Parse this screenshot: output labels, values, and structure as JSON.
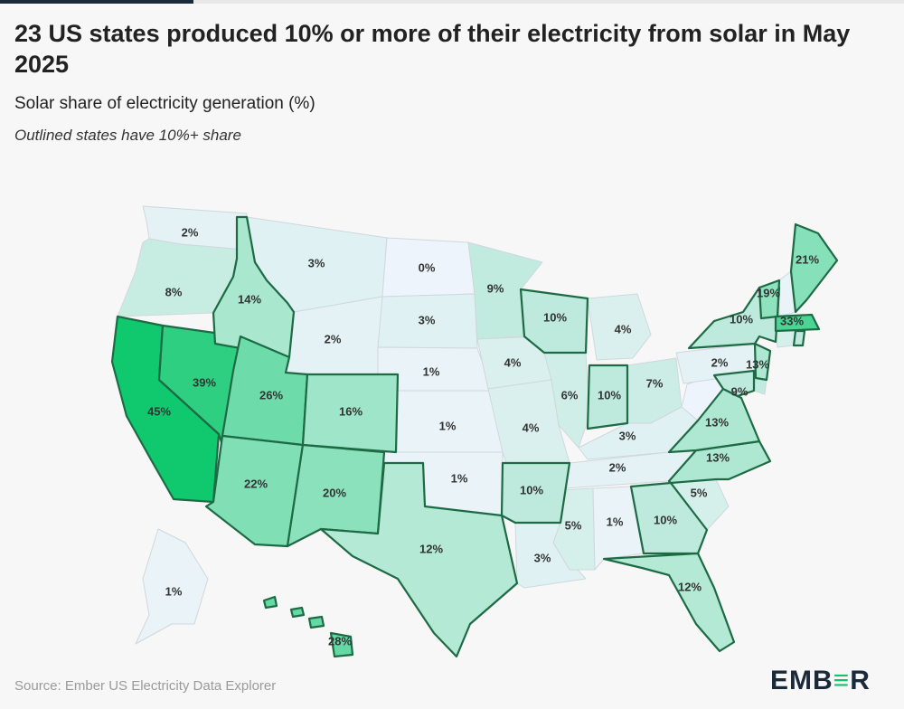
{
  "title": "23 US states produced 10% or more of their electricity from solar in May 2025",
  "subtitle": "Solar share of electricity generation (%)",
  "note": "Outlined states have 10%+ share",
  "source": "Source: Ember US Electricity Data Explorer",
  "logo": {
    "pre": "EMB",
    "bar": "≡",
    "post": "R"
  },
  "colors": {
    "scale_low": "#eef4fb",
    "scale_high": "#10c96e",
    "outline": "#1e6a45",
    "border": "#cfd8dc"
  },
  "chart_data": {
    "type": "choropleth",
    "threshold_outlined": 10,
    "states": [
      {
        "state": "WA",
        "value": 2,
        "label": "2%"
      },
      {
        "state": "OR",
        "value": 8,
        "label": "8%"
      },
      {
        "state": "CA",
        "value": 45,
        "label": "45%"
      },
      {
        "state": "NV",
        "value": 39,
        "label": "39%"
      },
      {
        "state": "ID",
        "value": 14,
        "label": "14%"
      },
      {
        "state": "MT",
        "value": 3,
        "label": "3%"
      },
      {
        "state": "WY",
        "value": 2,
        "label": "2%"
      },
      {
        "state": "UT",
        "value": 26,
        "label": "26%"
      },
      {
        "state": "AZ",
        "value": 22,
        "label": "22%"
      },
      {
        "state": "CO",
        "value": 16,
        "label": "16%"
      },
      {
        "state": "NM",
        "value": 20,
        "label": "20%"
      },
      {
        "state": "ND",
        "value": 0,
        "label": "0%"
      },
      {
        "state": "SD",
        "value": 3,
        "label": "3%"
      },
      {
        "state": "NE",
        "value": 1,
        "label": "1%"
      },
      {
        "state": "KS",
        "value": 1,
        "label": "1%"
      },
      {
        "state": "OK",
        "value": 1,
        "label": "1%"
      },
      {
        "state": "TX",
        "value": 12,
        "label": "12%"
      },
      {
        "state": "MN",
        "value": 9,
        "label": "9%"
      },
      {
        "state": "IA",
        "value": 4,
        "label": "4%"
      },
      {
        "state": "MO",
        "value": 4,
        "label": "4%"
      },
      {
        "state": "AR",
        "value": 10,
        "label": "10%"
      },
      {
        "state": "LA",
        "value": 3,
        "label": "3%"
      },
      {
        "state": "WI",
        "value": 10,
        "label": "10%"
      },
      {
        "state": "IL",
        "value": 6,
        "label": "6%"
      },
      {
        "state": "MI",
        "value": 4,
        "label": "4%"
      },
      {
        "state": "IN",
        "value": 10,
        "label": "10%"
      },
      {
        "state": "OH",
        "value": 7,
        "label": "7%"
      },
      {
        "state": "KY",
        "value": 3,
        "label": "3%"
      },
      {
        "state": "TN",
        "value": 2,
        "label": "2%"
      },
      {
        "state": "MS",
        "value": 5,
        "label": "5%"
      },
      {
        "state": "AL",
        "value": 1,
        "label": "1%"
      },
      {
        "state": "GA",
        "value": 10,
        "label": "10%"
      },
      {
        "state": "FL",
        "value": 12,
        "label": "12%"
      },
      {
        "state": "SC",
        "value": 5,
        "label": "5%"
      },
      {
        "state": "NC",
        "value": 13,
        "label": "13%"
      },
      {
        "state": "VA",
        "value": 13,
        "label": "13%"
      },
      {
        "state": "WV",
        "value": 0,
        "label": ""
      },
      {
        "state": "PA",
        "value": 2,
        "label": "2%"
      },
      {
        "state": "NY",
        "value": 10,
        "label": "10%"
      },
      {
        "state": "VT",
        "value": 19,
        "label": "19%"
      },
      {
        "state": "NH",
        "value": 1,
        "label": ""
      },
      {
        "state": "ME",
        "value": 21,
        "label": "21%"
      },
      {
        "state": "MA",
        "value": 33,
        "label": "33%"
      },
      {
        "state": "CT",
        "value": 5,
        "label": ""
      },
      {
        "state": "RI",
        "value": 10,
        "label": ""
      },
      {
        "state": "NJ",
        "value": 13,
        "label": "13%"
      },
      {
        "state": "DE",
        "value": 9,
        "label": "9%"
      },
      {
        "state": "MD",
        "value": 10,
        "label": ""
      },
      {
        "state": "AK",
        "value": 1,
        "label": "1%"
      },
      {
        "state": "HI",
        "value": 28,
        "label": "28%"
      }
    ]
  }
}
